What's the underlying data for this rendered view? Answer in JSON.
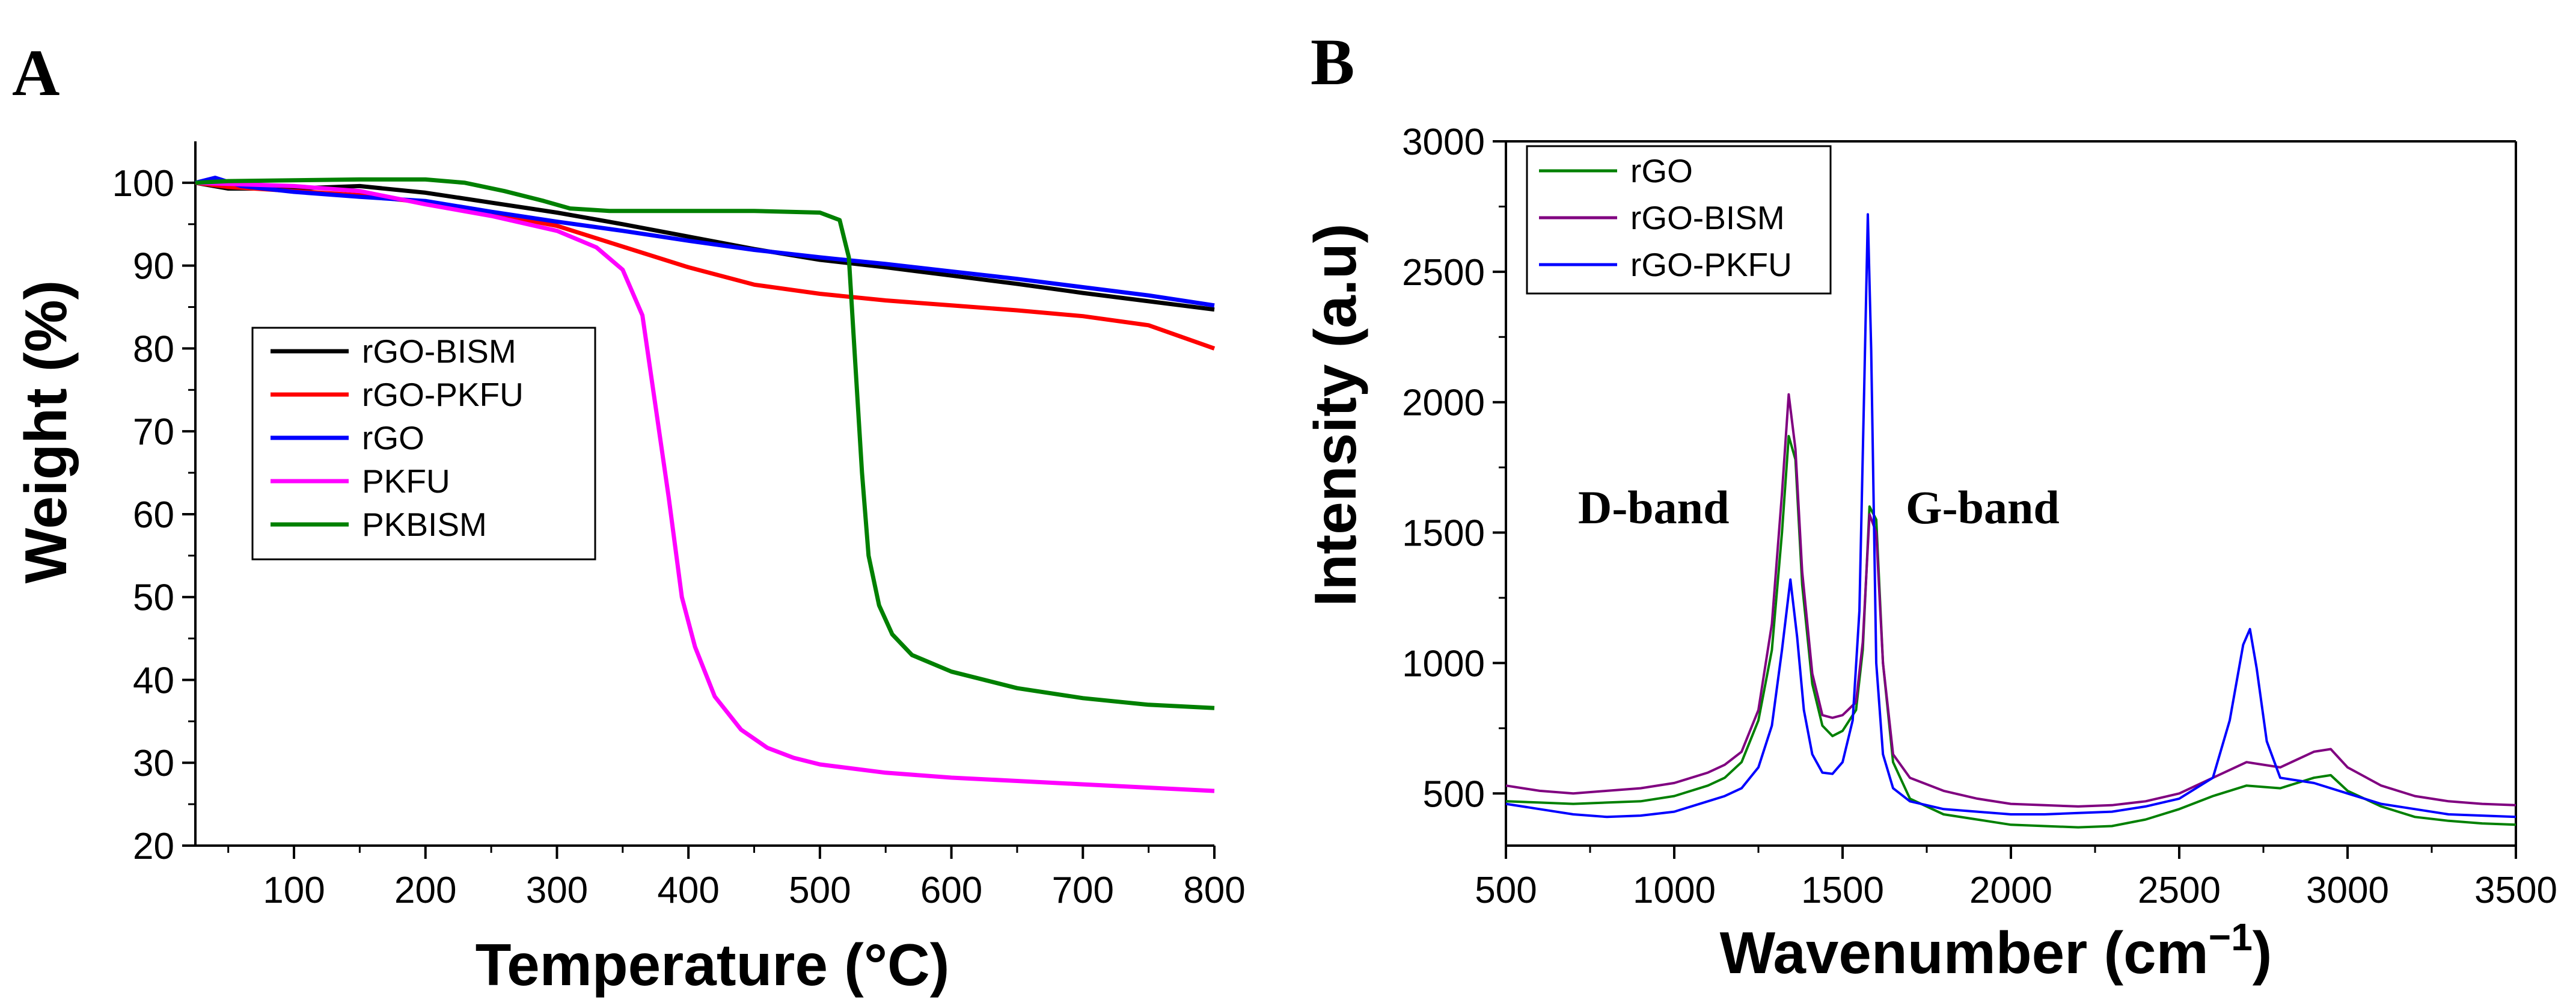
{
  "chart_data": [
    {
      "panel": "A",
      "type": "line",
      "xlabel": "Temperature (°C)",
      "ylabel": "Weight (%)",
      "xlim": [
        25,
        800
      ],
      "ylim": [
        20,
        105
      ],
      "xticks": [
        100,
        200,
        300,
        400,
        500,
        600,
        700,
        800
      ],
      "yticks": [
        20,
        30,
        40,
        50,
        60,
        70,
        80,
        90,
        100
      ],
      "legend_position": "middle-left",
      "series": [
        {
          "name": "rGO-BISM",
          "color": "#000000",
          "points": [
            [
              25,
              100
            ],
            [
              50,
              99.3
            ],
            [
              100,
              99.3
            ],
            [
              150,
              99.6
            ],
            [
              200,
              98.8
            ],
            [
              250,
              97.6
            ],
            [
              300,
              96.4
            ],
            [
              350,
              95.0
            ],
            [
              400,
              93.5
            ],
            [
              450,
              92.0
            ],
            [
              500,
              90.7
            ],
            [
              550,
              89.8
            ],
            [
              600,
              88.8
            ],
            [
              650,
              87.8
            ],
            [
              700,
              86.7
            ],
            [
              750,
              85.7
            ],
            [
              800,
              84.7
            ]
          ]
        },
        {
          "name": "rGO-PKFU",
          "color": "#ff0000",
          "points": [
            [
              25,
              100
            ],
            [
              50,
              99.5
            ],
            [
              100,
              99.0
            ],
            [
              150,
              98.5
            ],
            [
              200,
              97.6
            ],
            [
              250,
              96.3
            ],
            [
              300,
              94.8
            ],
            [
              350,
              92.3
            ],
            [
              400,
              89.8
            ],
            [
              450,
              87.7
            ],
            [
              500,
              86.6
            ],
            [
              550,
              85.8
            ],
            [
              600,
              85.2
            ],
            [
              650,
              84.6
            ],
            [
              700,
              83.9
            ],
            [
              750,
              82.8
            ],
            [
              800,
              80.0
            ]
          ]
        },
        {
          "name": "rGO",
          "color": "#0000ff",
          "points": [
            [
              25,
              100
            ],
            [
              40,
              100.6
            ],
            [
              60,
              99.6
            ],
            [
              100,
              98.9
            ],
            [
              150,
              98.3
            ],
            [
              200,
              97.8
            ],
            [
              250,
              96.5
            ],
            [
              300,
              95.3
            ],
            [
              350,
              94.2
            ],
            [
              400,
              93.0
            ],
            [
              450,
              91.9
            ],
            [
              500,
              91.0
            ],
            [
              550,
              90.2
            ],
            [
              600,
              89.3
            ],
            [
              650,
              88.4
            ],
            [
              700,
              87.4
            ],
            [
              750,
              86.4
            ],
            [
              800,
              85.2
            ]
          ]
        },
        {
          "name": "PKFU",
          "color": "#ff00ff",
          "points": [
            [
              25,
              100
            ],
            [
              100,
              99.6
            ],
            [
              150,
              99.0
            ],
            [
              200,
              97.4
            ],
            [
              250,
              96.0
            ],
            [
              300,
              94.2
            ],
            [
              330,
              92.2
            ],
            [
              350,
              89.5
            ],
            [
              365,
              84.0
            ],
            [
              375,
              73.0
            ],
            [
              385,
              62.0
            ],
            [
              395,
              50.0
            ],
            [
              405,
              44.0
            ],
            [
              420,
              38.0
            ],
            [
              440,
              34.0
            ],
            [
              460,
              31.8
            ],
            [
              480,
              30.6
            ],
            [
              500,
              29.8
            ],
            [
              550,
              28.8
            ],
            [
              600,
              28.2
            ],
            [
              650,
              27.8
            ],
            [
              700,
              27.4
            ],
            [
              750,
              27.0
            ],
            [
              800,
              26.6
            ]
          ]
        },
        {
          "name": "PKBISM",
          "color": "#008000",
          "points": [
            [
              25,
              100
            ],
            [
              50,
              100.2
            ],
            [
              100,
              100.3
            ],
            [
              150,
              100.4
            ],
            [
              200,
              100.4
            ],
            [
              230,
              100.0
            ],
            [
              260,
              99.0
            ],
            [
              290,
              97.8
            ],
            [
              310,
              96.9
            ],
            [
              340,
              96.6
            ],
            [
              400,
              96.6
            ],
            [
              450,
              96.6
            ],
            [
              500,
              96.4
            ],
            [
              515,
              95.5
            ],
            [
              522,
              91.0
            ],
            [
              527,
              78.0
            ],
            [
              532,
              65.0
            ],
            [
              537,
              55.0
            ],
            [
              545,
              49.0
            ],
            [
              555,
              45.5
            ],
            [
              570,
              43.0
            ],
            [
              600,
              41.0
            ],
            [
              650,
              39.0
            ],
            [
              700,
              37.8
            ],
            [
              750,
              37.0
            ],
            [
              800,
              36.6
            ]
          ]
        }
      ]
    },
    {
      "panel": "B",
      "type": "line",
      "xlabel": "Wavenumber (cm",
      "xlabel_sup": "−1",
      "xlabel_end": ")",
      "ylabel": "Intensity (a.u)",
      "xlim": [
        500,
        3500
      ],
      "ylim": [
        300,
        3000
      ],
      "xticks": [
        500,
        1000,
        1500,
        2000,
        2500,
        3000,
        3500
      ],
      "yticks": [
        500,
        1000,
        1500,
        2000,
        2500,
        3000
      ],
      "legend_position": "top-left",
      "annotations": [
        {
          "text": "D-band",
          "x": 1330
        },
        {
          "text": "G-band",
          "x": 1580
        }
      ],
      "series": [
        {
          "name": "rGO",
          "color": "#008000",
          "points": [
            [
              500,
              470
            ],
            [
              600,
              465
            ],
            [
              700,
              460
            ],
            [
              800,
              465
            ],
            [
              900,
              470
            ],
            [
              1000,
              490
            ],
            [
              1100,
              530
            ],
            [
              1150,
              560
            ],
            [
              1200,
              620
            ],
            [
              1250,
              780
            ],
            [
              1290,
              1050
            ],
            [
              1320,
              1500
            ],
            [
              1340,
              1870
            ],
            [
              1360,
              1780
            ],
            [
              1380,
              1300
            ],
            [
              1410,
              920
            ],
            [
              1440,
              760
            ],
            [
              1470,
              720
            ],
            [
              1500,
              740
            ],
            [
              1540,
              820
            ],
            [
              1560,
              1050
            ],
            [
              1580,
              1600
            ],
            [
              1600,
              1550
            ],
            [
              1620,
              1000
            ],
            [
              1650,
              620
            ],
            [
              1700,
              480
            ],
            [
              1800,
              420
            ],
            [
              1900,
              400
            ],
            [
              2000,
              380
            ],
            [
              2100,
              375
            ],
            [
              2200,
              370
            ],
            [
              2300,
              375
            ],
            [
              2400,
              400
            ],
            [
              2500,
              440
            ],
            [
              2600,
              490
            ],
            [
              2700,
              530
            ],
            [
              2800,
              520
            ],
            [
              2900,
              560
            ],
            [
              2950,
              570
            ],
            [
              3000,
              510
            ],
            [
              3100,
              450
            ],
            [
              3200,
              410
            ],
            [
              3300,
              395
            ],
            [
              3400,
              385
            ],
            [
              3500,
              380
            ]
          ]
        },
        {
          "name": "rGO-BISM",
          "color": "#800080",
          "points": [
            [
              500,
              530
            ],
            [
              600,
              510
            ],
            [
              700,
              500
            ],
            [
              800,
              510
            ],
            [
              900,
              520
            ],
            [
              1000,
              540
            ],
            [
              1100,
              580
            ],
            [
              1150,
              610
            ],
            [
              1200,
              660
            ],
            [
              1250,
              820
            ],
            [
              1290,
              1150
            ],
            [
              1320,
              1650
            ],
            [
              1340,
              2030
            ],
            [
              1360,
              1820
            ],
            [
              1380,
              1350
            ],
            [
              1410,
              960
            ],
            [
              1440,
              800
            ],
            [
              1470,
              790
            ],
            [
              1500,
              800
            ],
            [
              1540,
              850
            ],
            [
              1560,
              1080
            ],
            [
              1580,
              1570
            ],
            [
              1600,
              1500
            ],
            [
              1620,
              1000
            ],
            [
              1650,
              650
            ],
            [
              1700,
              560
            ],
            [
              1800,
              510
            ],
            [
              1900,
              480
            ],
            [
              2000,
              460
            ],
            [
              2100,
              455
            ],
            [
              2200,
              450
            ],
            [
              2300,
              455
            ],
            [
              2400,
              470
            ],
            [
              2500,
              500
            ],
            [
              2600,
              560
            ],
            [
              2700,
              620
            ],
            [
              2800,
              600
            ],
            [
              2900,
              660
            ],
            [
              2950,
              670
            ],
            [
              3000,
              600
            ],
            [
              3100,
              530
            ],
            [
              3200,
              490
            ],
            [
              3300,
              470
            ],
            [
              3400,
              460
            ],
            [
              3500,
              455
            ]
          ]
        },
        {
          "name": "rGO-PKFU",
          "color": "#0000ff",
          "points": [
            [
              500,
              460
            ],
            [
              600,
              440
            ],
            [
              700,
              420
            ],
            [
              800,
              410
            ],
            [
              900,
              415
            ],
            [
              1000,
              430
            ],
            [
              1100,
              470
            ],
            [
              1150,
              490
            ],
            [
              1200,
              520
            ],
            [
              1250,
              600
            ],
            [
              1290,
              760
            ],
            [
              1320,
              1050
            ],
            [
              1345,
              1320
            ],
            [
              1365,
              1100
            ],
            [
              1385,
              820
            ],
            [
              1410,
              650
            ],
            [
              1440,
              580
            ],
            [
              1470,
              575
            ],
            [
              1500,
              620
            ],
            [
              1530,
              780
            ],
            [
              1550,
              1200
            ],
            [
              1565,
              2100
            ],
            [
              1575,
              2720
            ],
            [
              1585,
              2200
            ],
            [
              1600,
              1000
            ],
            [
              1620,
              650
            ],
            [
              1650,
              520
            ],
            [
              1700,
              470
            ],
            [
              1800,
              440
            ],
            [
              1900,
              430
            ],
            [
              2000,
              420
            ],
            [
              2100,
              420
            ],
            [
              2200,
              425
            ],
            [
              2300,
              430
            ],
            [
              2400,
              450
            ],
            [
              2500,
              480
            ],
            [
              2600,
              560
            ],
            [
              2650,
              780
            ],
            [
              2690,
              1070
            ],
            [
              2710,
              1130
            ],
            [
              2730,
              980
            ],
            [
              2760,
              700
            ],
            [
              2800,
              560
            ],
            [
              2900,
              540
            ],
            [
              3000,
              500
            ],
            [
              3100,
              460
            ],
            [
              3200,
              440
            ],
            [
              3300,
              420
            ],
            [
              3400,
              415
            ],
            [
              3500,
              410
            ]
          ]
        }
      ]
    }
  ],
  "panelA": {
    "letter": "A",
    "xlabel": "Temperature (°C)",
    "ylabel": "Weight (%)",
    "legend": [
      "rGO-BISM",
      "rGO-PKFU",
      "rGO",
      "PKFU",
      "PKBISM"
    ]
  },
  "panelB": {
    "letter": "B",
    "xlabel": "Wavenumber (cm",
    "xlabel_sup": "−1",
    "xlabel_end": ")",
    "ylabel": "Intensity (a.u)",
    "legend": [
      "rGO",
      "rGO-BISM",
      "rGO-PKFU"
    ],
    "d_band": "D-band",
    "g_band": "G-band"
  }
}
